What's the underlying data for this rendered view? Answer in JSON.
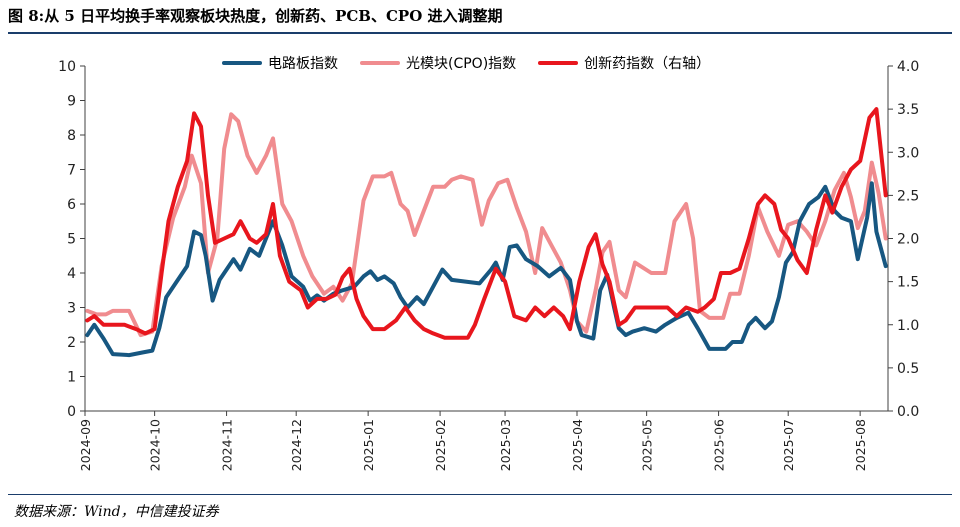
{
  "title": "图 8:从 5 日平均换手率观察板块热度，创新药、PCB、CPO 进入调整期",
  "source": "数据来源：Wind，中信建投证券",
  "colors": {
    "pcb": "#175781",
    "cpo": "#f08c8f",
    "pharma": "#e8161d",
    "rule": "#1a3d6b"
  },
  "chart_data": {
    "type": "line",
    "legend_position": "top-center",
    "grid": false,
    "x_ticks": [
      "2024-09",
      "2024-10",
      "2024-11",
      "2024-12",
      "2025-01",
      "2025-02",
      "2025-03",
      "2025-04",
      "2025-05",
      "2025-06",
      "2025-07",
      "2025-08"
    ],
    "y_left": {
      "lim": [
        0,
        10
      ],
      "ticks": [
        "0",
        "1",
        "2",
        "3",
        "4",
        "5",
        "6",
        "7",
        "8",
        "9",
        "10"
      ]
    },
    "y_right": {
      "lim": [
        0,
        4
      ],
      "ticks": [
        "0.0",
        "0.5",
        "1.0",
        "1.5",
        "2.0",
        "2.5",
        "3.0",
        "3.5",
        "4.0"
      ]
    },
    "series": [
      {
        "name": "电路板指数",
        "axis": "left",
        "color": "#175781",
        "points": [
          [
            "2024-09-02",
            2.2
          ],
          [
            "2024-09-05",
            2.5
          ],
          [
            "2024-09-09",
            2.1
          ],
          [
            "2024-09-13",
            1.65
          ],
          [
            "2024-09-20",
            1.62
          ],
          [
            "2024-09-26",
            1.7
          ],
          [
            "2024-09-30",
            1.75
          ],
          [
            "2024-10-03",
            2.4
          ],
          [
            "2024-10-06",
            3.3
          ],
          [
            "2024-10-10",
            3.7
          ],
          [
            "2024-10-15",
            4.2
          ],
          [
            "2024-10-18",
            5.2
          ],
          [
            "2024-10-21",
            5.1
          ],
          [
            "2024-10-23",
            4.5
          ],
          [
            "2024-10-26",
            3.2
          ],
          [
            "2024-10-29",
            3.8
          ],
          [
            "2024-11-04",
            4.4
          ],
          [
            "2024-11-07",
            4.1
          ],
          [
            "2024-11-11",
            4.7
          ],
          [
            "2024-11-15",
            4.5
          ],
          [
            "2024-11-18",
            5.0
          ],
          [
            "2024-11-21",
            5.5
          ],
          [
            "2024-11-25",
            4.8
          ],
          [
            "2024-11-29",
            3.9
          ],
          [
            "2024-12-04",
            3.6
          ],
          [
            "2024-12-07",
            3.2
          ],
          [
            "2024-12-10",
            3.35
          ],
          [
            "2024-12-13",
            3.2
          ],
          [
            "2024-12-17",
            3.4
          ],
          [
            "2024-12-21",
            3.5
          ],
          [
            "2024-12-26",
            3.6
          ],
          [
            "2024-12-30",
            3.9
          ],
          [
            "2025-01-02",
            4.05
          ],
          [
            "2025-01-05",
            3.8
          ],
          [
            "2025-01-08",
            3.9
          ],
          [
            "2025-01-12",
            3.7
          ],
          [
            "2025-01-15",
            3.3
          ],
          [
            "2025-01-18",
            3.0
          ],
          [
            "2025-01-22",
            3.3
          ],
          [
            "2025-01-25",
            3.1
          ],
          [
            "2025-01-29",
            3.6
          ],
          [
            "2025-02-02",
            4.1
          ],
          [
            "2025-02-06",
            3.8
          ],
          [
            "2025-02-12",
            3.75
          ],
          [
            "2025-02-18",
            3.7
          ],
          [
            "2025-02-23",
            4.1
          ],
          [
            "2025-02-25",
            4.3
          ],
          [
            "2025-02-28",
            3.8
          ],
          [
            "2025-03-03",
            4.75
          ],
          [
            "2025-03-06",
            4.8
          ],
          [
            "2025-03-10",
            4.4
          ],
          [
            "2025-03-15",
            4.2
          ],
          [
            "2025-03-20",
            3.9
          ],
          [
            "2025-03-25",
            4.15
          ],
          [
            "2025-03-29",
            3.8
          ],
          [
            "2025-04-01",
            2.6
          ],
          [
            "2025-04-03",
            2.2
          ],
          [
            "2025-04-08",
            2.1
          ],
          [
            "2025-04-11",
            3.5
          ],
          [
            "2025-04-14",
            3.95
          ],
          [
            "2025-04-17",
            3.0
          ],
          [
            "2025-04-19",
            2.4
          ],
          [
            "2025-04-22",
            2.2
          ],
          [
            "2025-04-25",
            2.3
          ],
          [
            "2025-04-30",
            2.4
          ],
          [
            "2025-05-05",
            2.3
          ],
          [
            "2025-05-09",
            2.5
          ],
          [
            "2025-05-14",
            2.7
          ],
          [
            "2025-05-19",
            2.85
          ],
          [
            "2025-05-23",
            2.4
          ],
          [
            "2025-05-28",
            1.8
          ],
          [
            "2025-06-04",
            1.8
          ],
          [
            "2025-06-07",
            2.0
          ],
          [
            "2025-06-11",
            2.0
          ],
          [
            "2025-06-14",
            2.5
          ],
          [
            "2025-06-17",
            2.7
          ],
          [
            "2025-06-21",
            2.4
          ],
          [
            "2025-06-24",
            2.6
          ],
          [
            "2025-06-27",
            3.3
          ],
          [
            "2025-06-30",
            4.3
          ],
          [
            "2025-07-03",
            4.6
          ],
          [
            "2025-07-06",
            5.5
          ],
          [
            "2025-07-10",
            6.0
          ],
          [
            "2025-07-14",
            6.2
          ],
          [
            "2025-07-17",
            6.5
          ],
          [
            "2025-07-21",
            5.8
          ],
          [
            "2025-07-24",
            5.6
          ],
          [
            "2025-07-28",
            5.5
          ],
          [
            "2025-07-31",
            4.4
          ],
          [
            "2025-08-04",
            5.6
          ],
          [
            "2025-08-06",
            6.6
          ],
          [
            "2025-08-08",
            5.2
          ],
          [
            "2025-08-12",
            4.2
          ]
        ]
      },
      {
        "name": "光模块(CPO)指数",
        "axis": "left",
        "color": "#f08c8f",
        "points": [
          [
            "2024-09-02",
            2.9
          ],
          [
            "2024-09-06",
            2.8
          ],
          [
            "2024-09-10",
            2.8
          ],
          [
            "2024-09-13",
            2.9
          ],
          [
            "2024-09-20",
            2.9
          ],
          [
            "2024-09-25",
            2.2
          ],
          [
            "2024-09-30",
            2.3
          ],
          [
            "2024-10-04",
            4.2
          ],
          [
            "2024-10-09",
            5.6
          ],
          [
            "2024-10-14",
            6.5
          ],
          [
            "2024-10-17",
            7.4
          ],
          [
            "2024-10-21",
            6.6
          ],
          [
            "2024-10-24",
            4.0
          ],
          [
            "2024-10-28",
            5.0
          ],
          [
            "2024-10-31",
            7.6
          ],
          [
            "2024-11-03",
            8.6
          ],
          [
            "2024-11-06",
            8.4
          ],
          [
            "2024-11-10",
            7.4
          ],
          [
            "2024-11-14",
            6.9
          ],
          [
            "2024-11-18",
            7.4
          ],
          [
            "2024-11-21",
            7.9
          ],
          [
            "2024-11-25",
            6.0
          ],
          [
            "2024-11-29",
            5.5
          ],
          [
            "2024-12-04",
            4.5
          ],
          [
            "2024-12-08",
            3.9
          ],
          [
            "2024-12-13",
            3.4
          ],
          [
            "2024-12-17",
            3.6
          ],
          [
            "2024-12-21",
            3.2
          ],
          [
            "2024-12-25",
            3.7
          ],
          [
            "2024-12-30",
            6.1
          ],
          [
            "2025-01-03",
            6.8
          ],
          [
            "2025-01-08",
            6.8
          ],
          [
            "2025-01-11",
            6.9
          ],
          [
            "2025-01-15",
            6.0
          ],
          [
            "2025-01-18",
            5.8
          ],
          [
            "2025-01-21",
            5.1
          ],
          [
            "2025-01-25",
            5.8
          ],
          [
            "2025-01-29",
            6.5
          ],
          [
            "2025-02-03",
            6.5
          ],
          [
            "2025-02-06",
            6.7
          ],
          [
            "2025-02-10",
            6.8
          ],
          [
            "2025-02-15",
            6.7
          ],
          [
            "2025-02-19",
            5.4
          ],
          [
            "2025-02-22",
            6.1
          ],
          [
            "2025-02-26",
            6.6
          ],
          [
            "2025-03-02",
            6.7
          ],
          [
            "2025-03-06",
            5.9
          ],
          [
            "2025-03-10",
            5.2
          ],
          [
            "2025-03-14",
            4.0
          ],
          [
            "2025-03-17",
            5.3
          ],
          [
            "2025-03-21",
            4.8
          ],
          [
            "2025-03-25",
            4.3
          ],
          [
            "2025-03-29",
            3.5
          ],
          [
            "2025-04-01",
            2.6
          ],
          [
            "2025-04-05",
            2.3
          ],
          [
            "2025-04-09",
            3.5
          ],
          [
            "2025-04-12",
            4.6
          ],
          [
            "2025-04-15",
            4.9
          ],
          [
            "2025-04-19",
            3.5
          ],
          [
            "2025-04-22",
            3.3
          ],
          [
            "2025-04-26",
            4.3
          ],
          [
            "2025-05-03",
            4.0
          ],
          [
            "2025-05-09",
            4.0
          ],
          [
            "2025-05-13",
            5.5
          ],
          [
            "2025-05-18",
            6.0
          ],
          [
            "2025-05-21",
            5.0
          ],
          [
            "2025-05-24",
            2.9
          ],
          [
            "2025-05-28",
            2.7
          ],
          [
            "2025-06-03",
            2.7
          ],
          [
            "2025-06-06",
            3.4
          ],
          [
            "2025-06-10",
            3.4
          ],
          [
            "2025-06-14",
            4.5
          ],
          [
            "2025-06-18",
            5.9
          ],
          [
            "2025-06-22",
            5.2
          ],
          [
            "2025-06-27",
            4.5
          ],
          [
            "2025-07-01",
            5.4
          ],
          [
            "2025-07-05",
            5.5
          ],
          [
            "2025-07-09",
            5.2
          ],
          [
            "2025-07-13",
            4.8
          ],
          [
            "2025-07-17",
            5.5
          ],
          [
            "2025-07-21",
            6.4
          ],
          [
            "2025-07-25",
            6.9
          ],
          [
            "2025-07-28",
            6.2
          ],
          [
            "2025-07-31",
            5.3
          ],
          [
            "2025-08-03",
            5.8
          ],
          [
            "2025-08-06",
            7.2
          ],
          [
            "2025-08-09",
            6.3
          ],
          [
            "2025-08-12",
            5.0
          ]
        ]
      },
      {
        "name": "创新药指数（右轴）",
        "axis": "right",
        "color": "#e8161d",
        "points": [
          [
            "2024-09-02",
            1.05
          ],
          [
            "2024-09-05",
            1.1
          ],
          [
            "2024-09-09",
            1.0
          ],
          [
            "2024-09-13",
            1.0
          ],
          [
            "2024-09-18",
            1.0
          ],
          [
            "2024-09-23",
            0.95
          ],
          [
            "2024-09-27",
            0.9
          ],
          [
            "2024-10-01",
            0.95
          ],
          [
            "2024-10-04",
            1.6
          ],
          [
            "2024-10-07",
            2.2
          ],
          [
            "2024-10-11",
            2.6
          ],
          [
            "2024-10-15",
            2.9
          ],
          [
            "2024-10-18",
            3.45
          ],
          [
            "2024-10-21",
            3.3
          ],
          [
            "2024-10-24",
            2.5
          ],
          [
            "2024-10-27",
            1.95
          ],
          [
            "2024-10-31",
            2.0
          ],
          [
            "2024-11-04",
            2.05
          ],
          [
            "2024-11-07",
            2.2
          ],
          [
            "2024-11-11",
            2.0
          ],
          [
            "2024-11-14",
            1.95
          ],
          [
            "2024-11-18",
            2.05
          ],
          [
            "2024-11-21",
            2.4
          ],
          [
            "2024-11-24",
            1.8
          ],
          [
            "2024-11-28",
            1.5
          ],
          [
            "2024-12-03",
            1.4
          ],
          [
            "2024-12-06",
            1.2
          ],
          [
            "2024-12-10",
            1.3
          ],
          [
            "2024-12-14",
            1.3
          ],
          [
            "2024-12-18",
            1.35
          ],
          [
            "2024-12-21",
            1.55
          ],
          [
            "2024-12-24",
            1.65
          ],
          [
            "2024-12-27",
            1.3
          ],
          [
            "2024-12-30",
            1.1
          ],
          [
            "2025-01-03",
            0.95
          ],
          [
            "2025-01-08",
            0.95
          ],
          [
            "2025-01-13",
            1.05
          ],
          [
            "2025-01-17",
            1.2
          ],
          [
            "2025-01-21",
            1.05
          ],
          [
            "2025-01-25",
            0.95
          ],
          [
            "2025-01-29",
            0.9
          ],
          [
            "2025-02-03",
            0.85
          ],
          [
            "2025-02-08",
            0.85
          ],
          [
            "2025-02-13",
            0.85
          ],
          [
            "2025-02-16",
            1.0
          ],
          [
            "2025-02-20",
            1.3
          ],
          [
            "2025-02-25",
            1.65
          ],
          [
            "2025-03-01",
            1.5
          ],
          [
            "2025-03-05",
            1.1
          ],
          [
            "2025-03-10",
            1.05
          ],
          [
            "2025-03-14",
            1.2
          ],
          [
            "2025-03-18",
            1.1
          ],
          [
            "2025-03-22",
            1.2
          ],
          [
            "2025-03-26",
            1.1
          ],
          [
            "2025-03-29",
            0.95
          ],
          [
            "2025-04-02",
            1.5
          ],
          [
            "2025-04-06",
            1.9
          ],
          [
            "2025-04-09",
            2.05
          ],
          [
            "2025-04-12",
            1.7
          ],
          [
            "2025-04-15",
            1.5
          ],
          [
            "2025-04-19",
            1.0
          ],
          [
            "2025-04-22",
            1.05
          ],
          [
            "2025-04-26",
            1.2
          ],
          [
            "2025-04-30",
            1.2
          ],
          [
            "2025-05-05",
            1.2
          ],
          [
            "2025-05-10",
            1.2
          ],
          [
            "2025-05-14",
            1.1
          ],
          [
            "2025-05-18",
            1.2
          ],
          [
            "2025-05-23",
            1.15
          ],
          [
            "2025-05-26",
            1.2
          ],
          [
            "2025-05-30",
            1.3
          ],
          [
            "2025-06-02",
            1.6
          ],
          [
            "2025-06-06",
            1.6
          ],
          [
            "2025-06-10",
            1.65
          ],
          [
            "2025-06-14",
            2.0
          ],
          [
            "2025-06-18",
            2.4
          ],
          [
            "2025-06-21",
            2.5
          ],
          [
            "2025-06-25",
            2.4
          ],
          [
            "2025-06-28",
            2.1
          ],
          [
            "2025-07-01",
            2.0
          ],
          [
            "2025-07-05",
            1.75
          ],
          [
            "2025-07-09",
            1.6
          ],
          [
            "2025-07-13",
            2.1
          ],
          [
            "2025-07-17",
            2.5
          ],
          [
            "2025-07-20",
            2.3
          ],
          [
            "2025-07-24",
            2.6
          ],
          [
            "2025-07-28",
            2.8
          ],
          [
            "2025-08-01",
            2.9
          ],
          [
            "2025-08-05",
            3.4
          ],
          [
            "2025-08-08",
            3.5
          ],
          [
            "2025-08-12",
            2.5
          ]
        ]
      }
    ]
  }
}
